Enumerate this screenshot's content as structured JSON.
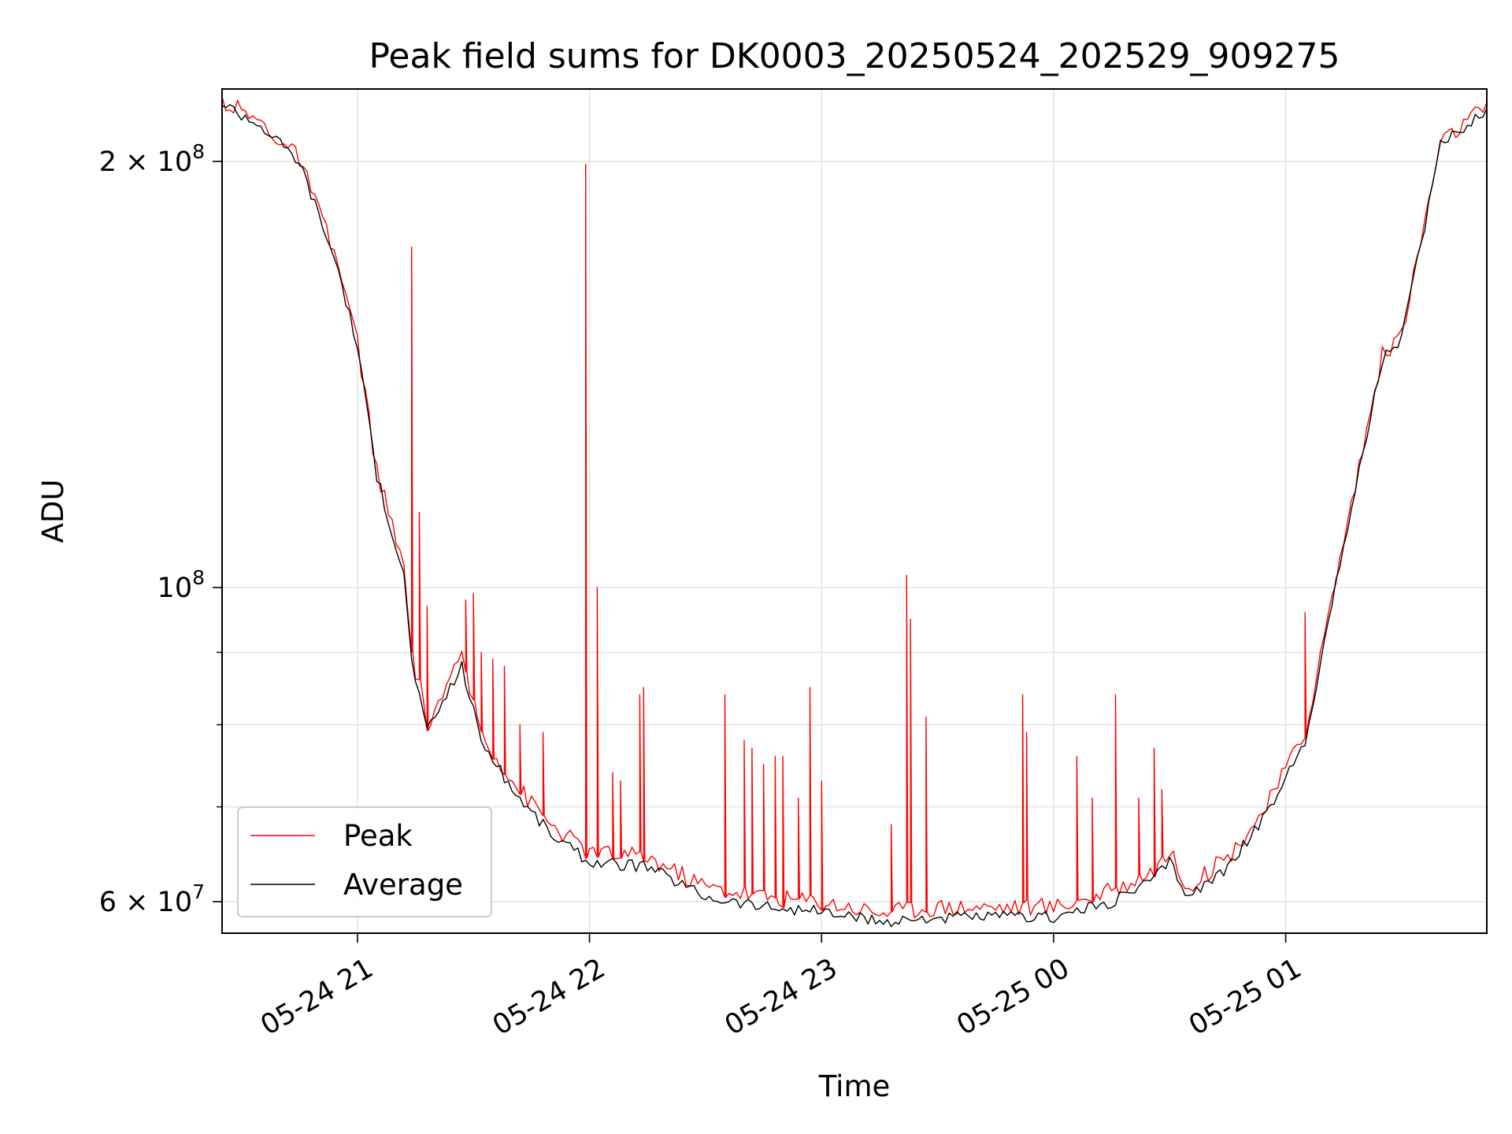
{
  "chart_data": {
    "type": "line",
    "title": "Peak field sums for DK0003_20250524_202529_909275",
    "xlabel": "Time",
    "ylabel": "ADU",
    "yscale": "log",
    "xlim": [
      "2025-05-24 20:25",
      "2025-05-25 01:52"
    ],
    "ylim": [
      57000000,
      225000000
    ],
    "grid": true,
    "legend": {
      "placement": "lower-left",
      "entries": [
        "Peak",
        "Average"
      ]
    },
    "x_ticks": [
      {
        "value": "2025-05-24 21:00",
        "label": "05-24 21"
      },
      {
        "value": "2025-05-24 22:00",
        "label": "05-24 22"
      },
      {
        "value": "2025-05-24 23:00",
        "label": "05-24 23"
      },
      {
        "value": "2025-05-25 00:00",
        "label": "05-25 00"
      },
      {
        "value": "2025-05-25 01:00",
        "label": "05-25 01"
      }
    ],
    "y_major_ticks": [
      {
        "value": 60000000,
        "base": "6 × 10",
        "exp": "7"
      },
      {
        "value": 100000000,
        "base": "10",
        "exp": "8"
      },
      {
        "value": 200000000,
        "base": "2 × 10",
        "exp": "8"
      }
    ],
    "y_minor_ticks": [
      70000000,
      80000000,
      90000000
    ],
    "series": [
      {
        "name": "Average",
        "color": "#000000",
        "x": [
          "2025-05-24 20:25",
          "2025-05-24 20:35",
          "2025-05-24 20:45",
          "2025-05-24 20:55",
          "2025-05-24 21:00",
          "2025-05-24 21:05",
          "2025-05-24 21:12",
          "2025-05-24 21:14",
          "2025-05-24 21:18",
          "2025-05-24 21:22",
          "2025-05-24 21:27",
          "2025-05-24 21:32",
          "2025-05-24 21:40",
          "2025-05-24 21:50",
          "2025-05-24 22:00",
          "2025-05-24 22:15",
          "2025-05-24 22:30",
          "2025-05-24 22:45",
          "2025-05-24 23:00",
          "2025-05-24 23:15",
          "2025-05-24 23:30",
          "2025-05-24 23:45",
          "2025-05-25 00:00",
          "2025-05-25 00:15",
          "2025-05-25 00:25",
          "2025-05-25 00:30",
          "2025-05-25 00:35",
          "2025-05-25 00:45",
          "2025-05-25 00:55",
          "2025-05-25 01:05",
          "2025-05-25 01:15",
          "2025-05-25 01:25",
          "2025-05-25 01:30",
          "2025-05-25 01:35",
          "2025-05-25 01:40",
          "2025-05-25 01:52"
        ],
        "values": [
          220000000,
          212000000,
          200000000,
          168000000,
          148000000,
          120000000,
          102000000,
          89000000,
          79000000,
          83000000,
          88000000,
          78000000,
          72000000,
          67000000,
          64000000,
          63500000,
          60500000,
          59500000,
          59000000,
          58000000,
          58500000,
          58500000,
          58500000,
          60000000,
          62000000,
          64000000,
          60500000,
          63500000,
          69000000,
          78000000,
          107000000,
          145000000,
          150000000,
          175000000,
          205000000,
          218000000
        ]
      },
      {
        "name": "Peak",
        "color": "#ff0000",
        "x": [
          "2025-05-24 20:25",
          "2025-05-24 20:35",
          "2025-05-24 20:45",
          "2025-05-24 20:55",
          "2025-05-24 21:00",
          "2025-05-24 21:05",
          "2025-05-24 21:12",
          "2025-05-24 21:14",
          "2025-05-24 21:18",
          "2025-05-24 21:22",
          "2025-05-24 21:27",
          "2025-05-24 21:32",
          "2025-05-24 21:40",
          "2025-05-24 21:50",
          "2025-05-24 22:00",
          "2025-05-24 22:15",
          "2025-05-24 22:30",
          "2025-05-24 22:45",
          "2025-05-24 23:00",
          "2025-05-24 23:15",
          "2025-05-24 23:30",
          "2025-05-24 23:45",
          "2025-05-25 00:00",
          "2025-05-25 00:15",
          "2025-05-25 00:25",
          "2025-05-25 00:30",
          "2025-05-25 00:35",
          "2025-05-25 00:45",
          "2025-05-25 00:55",
          "2025-05-25 01:05",
          "2025-05-25 01:15",
          "2025-05-25 01:25",
          "2025-05-25 01:30",
          "2025-05-25 01:35",
          "2025-05-25 01:40",
          "2025-05-25 01:52"
        ],
        "values": [
          221000000,
          213000000,
          201000000,
          169000000,
          149000000,
          121000000,
          103000000,
          90000000,
          80000000,
          84000000,
          89000000,
          79000000,
          73000000,
          68000000,
          65000000,
          64500000,
          61500000,
          60500000,
          60000000,
          59000000,
          59500000,
          59500000,
          59500000,
          61000000,
          63000000,
          65000000,
          61500000,
          64500000,
          70000000,
          79000000,
          108000000,
          146000000,
          151000000,
          176000000,
          206000000,
          219000000
        ],
        "spikes": [
          [
            "2025-05-24 21:14",
            174000000
          ],
          [
            "2025-05-24 21:16",
            113000000
          ],
          [
            "2025-05-24 21:18",
            97000000
          ],
          [
            "2025-05-24 21:28",
            98000000
          ],
          [
            "2025-05-24 21:30",
            99000000
          ],
          [
            "2025-05-24 21:32",
            90000000
          ],
          [
            "2025-05-24 21:35",
            89000000
          ],
          [
            "2025-05-24 21:38",
            88000000
          ],
          [
            "2025-05-24 21:42",
            80000000
          ],
          [
            "2025-05-24 21:48",
            79000000
          ],
          [
            "2025-05-24 21:59",
            199000000
          ],
          [
            "2025-05-24 22:02",
            100000000
          ],
          [
            "2025-05-24 22:06",
            74000000
          ],
          [
            "2025-05-24 22:08",
            73000000
          ],
          [
            "2025-05-24 22:13",
            84000000
          ],
          [
            "2025-05-24 22:14",
            85000000
          ],
          [
            "2025-05-24 22:35",
            84000000
          ],
          [
            "2025-05-24 22:40",
            78000000
          ],
          [
            "2025-05-24 22:42",
            77000000
          ],
          [
            "2025-05-24 22:45",
            75000000
          ],
          [
            "2025-05-24 22:48",
            76000000
          ],
          [
            "2025-05-24 22:50",
            76000000
          ],
          [
            "2025-05-24 22:54",
            71000000
          ],
          [
            "2025-05-24 22:57",
            85000000
          ],
          [
            "2025-05-24 23:00",
            73000000
          ],
          [
            "2025-05-24 23:18",
            68000000
          ],
          [
            "2025-05-24 23:22",
            102000000
          ],
          [
            "2025-05-24 23:23",
            95000000
          ],
          [
            "2025-05-24 23:27",
            81000000
          ],
          [
            "2025-05-24 23:52",
            84000000
          ],
          [
            "2025-05-24 23:53",
            79000000
          ],
          [
            "2025-05-25 00:06",
            76000000
          ],
          [
            "2025-05-25 00:10",
            71000000
          ],
          [
            "2025-05-25 00:16",
            84000000
          ],
          [
            "2025-05-25 00:22",
            71000000
          ],
          [
            "2025-05-25 00:26",
            77000000
          ],
          [
            "2025-05-25 00:28",
            72000000
          ],
          [
            "2025-05-25 01:05",
            96000000
          ]
        ]
      }
    ]
  }
}
